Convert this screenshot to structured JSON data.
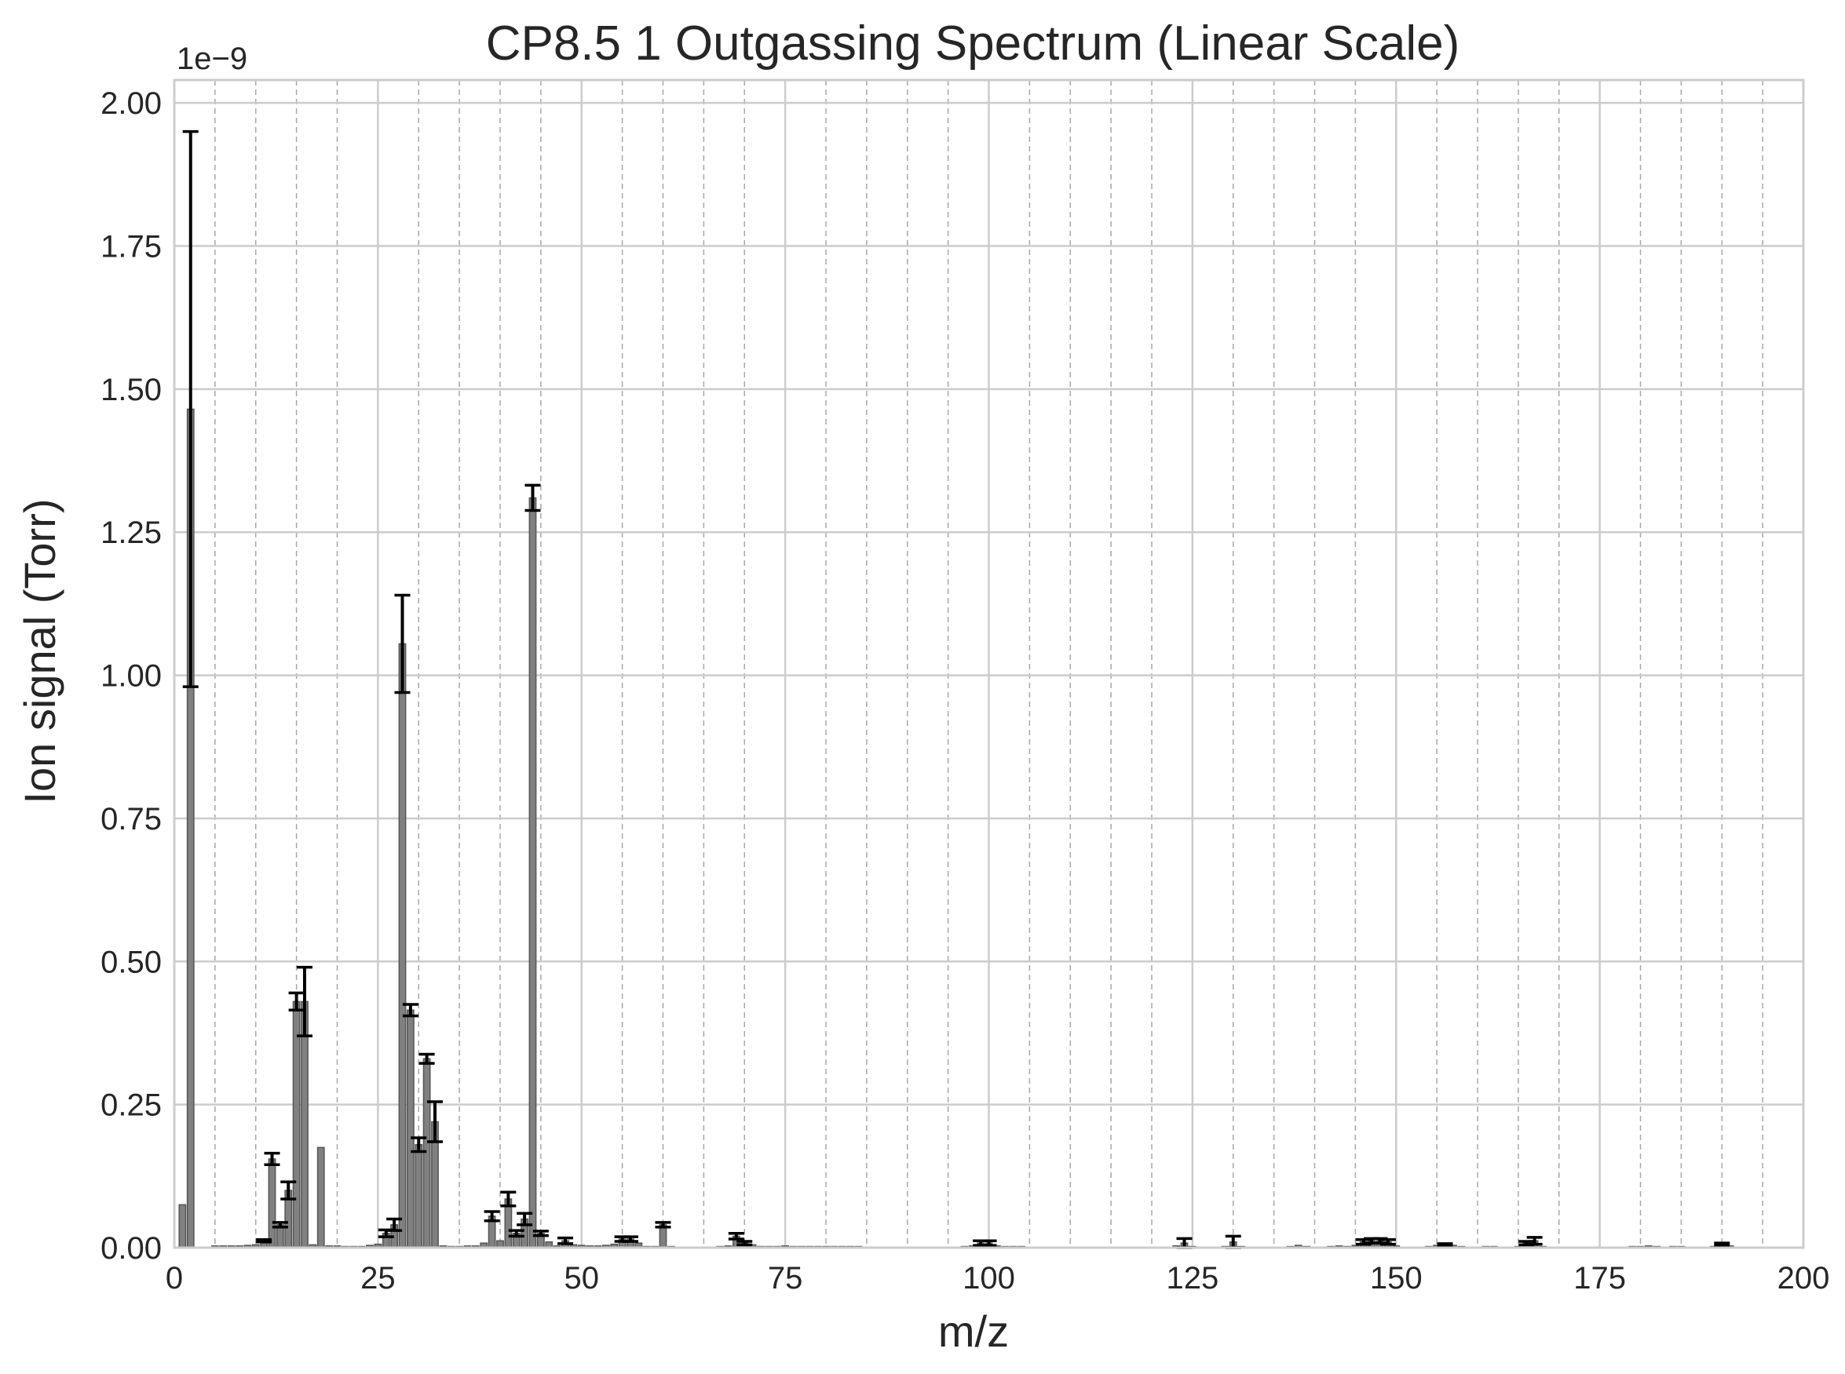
{
  "chart_data": {
    "type": "bar",
    "title": "CP8.5 1 Outgassing Spectrum (Linear Scale)",
    "xlabel": "m/z",
    "ylabel": "Ion signal (Torr)",
    "y_offset_label": "1e−9",
    "y_scale_factor": 1e-09,
    "xlim": [
      0,
      200
    ],
    "ylim": [
      0,
      2.04
    ],
    "x_ticks": [
      0,
      25,
      50,
      75,
      100,
      125,
      150,
      175,
      200
    ],
    "x_tick_labels": [
      "0",
      "25",
      "50",
      "75",
      "100",
      "125",
      "150",
      "175",
      "200"
    ],
    "y_ticks": [
      0,
      0.25,
      0.5,
      0.75,
      1.0,
      1.25,
      1.5,
      1.75,
      2.0
    ],
    "y_tick_labels": [
      "0.00",
      "0.25",
      "0.50",
      "0.75",
      "1.00",
      "1.25",
      "1.50",
      "1.75",
      "2.00"
    ],
    "x_minor_step": 5,
    "grid": true,
    "bar_color": "#808080",
    "errorbar_color": "#000000",
    "series": [
      {
        "points": [
          {
            "x": 1,
            "y": 0.075
          },
          {
            "x": 2,
            "y": 1.465,
            "err": 0.485
          },
          {
            "x": 5,
            "y": 0.003
          },
          {
            "x": 6,
            "y": 0.003
          },
          {
            "x": 7,
            "y": 0.003
          },
          {
            "x": 8,
            "y": 0.003
          },
          {
            "x": 9,
            "y": 0.004
          },
          {
            "x": 10,
            "y": 0.005
          },
          {
            "x": 11,
            "y": 0.012,
            "err": 0.002
          },
          {
            "x": 12,
            "y": 0.155,
            "err": 0.01
          },
          {
            "x": 13,
            "y": 0.04,
            "err": 0.004
          },
          {
            "x": 14,
            "y": 0.1,
            "err": 0.015
          },
          {
            "x": 15,
            "y": 0.43,
            "err": 0.015
          },
          {
            "x": 16,
            "y": 0.43,
            "err": 0.06
          },
          {
            "x": 17,
            "y": 0.005
          },
          {
            "x": 18,
            "y": 0.175
          },
          {
            "x": 19,
            "y": 0.003
          },
          {
            "x": 20,
            "y": 0.003
          },
          {
            "x": 21,
            "y": 0.002
          },
          {
            "x": 22,
            "y": 0.002
          },
          {
            "x": 23,
            "y": 0.002
          },
          {
            "x": 24,
            "y": 0.004
          },
          {
            "x": 25,
            "y": 0.006
          },
          {
            "x": 26,
            "y": 0.025,
            "err": 0.006
          },
          {
            "x": 27,
            "y": 0.04,
            "err": 0.01
          },
          {
            "x": 28,
            "y": 1.055,
            "err": 0.085
          },
          {
            "x": 29,
            "y": 0.415,
            "err": 0.01
          },
          {
            "x": 30,
            "y": 0.18,
            "err": 0.012
          },
          {
            "x": 31,
            "y": 0.33,
            "err": 0.008
          },
          {
            "x": 32,
            "y": 0.22,
            "err": 0.035
          },
          {
            "x": 33,
            "y": 0.003
          },
          {
            "x": 34,
            "y": 0.002
          },
          {
            "x": 35,
            "y": 0.002
          },
          {
            "x": 36,
            "y": 0.003
          },
          {
            "x": 37,
            "y": 0.003
          },
          {
            "x": 38,
            "y": 0.008
          },
          {
            "x": 39,
            "y": 0.055,
            "err": 0.008
          },
          {
            "x": 40,
            "y": 0.012
          },
          {
            "x": 41,
            "y": 0.085,
            "err": 0.012
          },
          {
            "x": 42,
            "y": 0.025,
            "err": 0.005
          },
          {
            "x": 43,
            "y": 0.05,
            "err": 0.01
          },
          {
            "x": 44,
            "y": 1.31,
            "err": 0.022
          },
          {
            "x": 45,
            "y": 0.025,
            "err": 0.004
          },
          {
            "x": 46,
            "y": 0.01
          },
          {
            "x": 47,
            "y": 0.003
          },
          {
            "x": 48,
            "y": 0.012,
            "err": 0.005
          },
          {
            "x": 49,
            "y": 0.005
          },
          {
            "x": 50,
            "y": 0.004
          },
          {
            "x": 51,
            "y": 0.003
          },
          {
            "x": 52,
            "y": 0.003
          },
          {
            "x": 53,
            "y": 0.004
          },
          {
            "x": 54,
            "y": 0.006
          },
          {
            "x": 55,
            "y": 0.015,
            "err": 0.004
          },
          {
            "x": 56,
            "y": 0.015,
            "err": 0.004
          },
          {
            "x": 57,
            "y": 0.008
          },
          {
            "x": 58,
            "y": 0.002
          },
          {
            "x": 59,
            "y": 0.002
          },
          {
            "x": 60,
            "y": 0.04,
            "err": 0.004
          },
          {
            "x": 61,
            "y": 0.002
          },
          {
            "x": 62,
            "y": 0.001
          },
          {
            "x": 63,
            "y": 0.001
          },
          {
            "x": 64,
            "y": 0.001
          },
          {
            "x": 65,
            "y": 0.001
          },
          {
            "x": 66,
            "y": 0.001
          },
          {
            "x": 67,
            "y": 0.002
          },
          {
            "x": 68,
            "y": 0.003
          },
          {
            "x": 69,
            "y": 0.02,
            "err": 0.005
          },
          {
            "x": 70,
            "y": 0.008,
            "err": 0.003
          },
          {
            "x": 71,
            "y": 0.005
          },
          {
            "x": 72,
            "y": 0.002
          },
          {
            "x": 73,
            "y": 0.002
          },
          {
            "x": 74,
            "y": 0.002
          },
          {
            "x": 75,
            "y": 0.003
          },
          {
            "x": 76,
            "y": 0.002
          },
          {
            "x": 77,
            "y": 0.002
          },
          {
            "x": 78,
            "y": 0.002
          },
          {
            "x": 79,
            "y": 0.002
          },
          {
            "x": 80,
            "y": 0.002
          },
          {
            "x": 81,
            "y": 0.002
          },
          {
            "x": 82,
            "y": 0.002
          },
          {
            "x": 83,
            "y": 0.002
          },
          {
            "x": 84,
            "y": 0.002
          },
          {
            "x": 85,
            "y": 0.001
          },
          {
            "x": 86,
            "y": 0.001
          },
          {
            "x": 87,
            "y": 0.001
          },
          {
            "x": 88,
            "y": 0.001
          },
          {
            "x": 89,
            "y": 0.001
          },
          {
            "x": 90,
            "y": 0.001
          },
          {
            "x": 91,
            "y": 0.001
          },
          {
            "x": 92,
            "y": 0.001
          },
          {
            "x": 93,
            "y": 0.001
          },
          {
            "x": 94,
            "y": 0.001
          },
          {
            "x": 95,
            "y": 0.001
          },
          {
            "x": 96,
            "y": 0.001
          },
          {
            "x": 97,
            "y": 0.002
          },
          {
            "x": 98,
            "y": 0.003
          },
          {
            "x": 99,
            "y": 0.008,
            "err": 0.004
          },
          {
            "x": 100,
            "y": 0.008,
            "err": 0.004
          },
          {
            "x": 101,
            "y": 0.003
          },
          {
            "x": 102,
            "y": 0.002
          },
          {
            "x": 103,
            "y": 0.002
          },
          {
            "x": 104,
            "y": 0.002
          },
          {
            "x": 105,
            "y": 0.001
          },
          {
            "x": 106,
            "y": 0.001
          },
          {
            "x": 107,
            "y": 0.001
          },
          {
            "x": 108,
            "y": 0.001
          },
          {
            "x": 109,
            "y": 0.001
          },
          {
            "x": 110,
            "y": 0.001
          },
          {
            "x": 111,
            "y": 0.001
          },
          {
            "x": 112,
            "y": 0.001
          },
          {
            "x": 113,
            "y": 0.001
          },
          {
            "x": 114,
            "y": 0.001
          },
          {
            "x": 115,
            "y": 0.001
          },
          {
            "x": 116,
            "y": 0.001
          },
          {
            "x": 117,
            "y": 0.001
          },
          {
            "x": 118,
            "y": 0.001
          },
          {
            "x": 119,
            "y": 0.001
          },
          {
            "x": 120,
            "y": 0.001
          },
          {
            "x": 121,
            "y": 0.001
          },
          {
            "x": 122,
            "y": 0.001
          },
          {
            "x": 123,
            "y": 0.003
          },
          {
            "x": 124,
            "y": 0.008,
            "err": 0.008
          },
          {
            "x": 125,
            "y": 0.002
          },
          {
            "x": 126,
            "y": 0.001
          },
          {
            "x": 127,
            "y": 0.001
          },
          {
            "x": 128,
            "y": 0.001
          },
          {
            "x": 129,
            "y": 0.002
          },
          {
            "x": 130,
            "y": 0.01,
            "err": 0.01
          },
          {
            "x": 131,
            "y": 0.002
          },
          {
            "x": 132,
            "y": 0.001
          },
          {
            "x": 133,
            "y": 0.001
          },
          {
            "x": 134,
            "y": 0.001
          },
          {
            "x": 135,
            "y": 0.001
          },
          {
            "x": 136,
            "y": 0.001
          },
          {
            "x": 137,
            "y": 0.002
          },
          {
            "x": 138,
            "y": 0.004
          },
          {
            "x": 139,
            "y": 0.002
          },
          {
            "x": 140,
            "y": 0.001
          },
          {
            "x": 141,
            "y": 0.001
          },
          {
            "x": 142,
            "y": 0.002
          },
          {
            "x": 143,
            "y": 0.003
          },
          {
            "x": 144,
            "y": 0.002
          },
          {
            "x": 145,
            "y": 0.004
          },
          {
            "x": 146,
            "y": 0.01,
            "err": 0.004
          },
          {
            "x": 147,
            "y": 0.012,
            "err": 0.004
          },
          {
            "x": 148,
            "y": 0.012,
            "err": 0.004
          },
          {
            "x": 149,
            "y": 0.01,
            "err": 0.004
          },
          {
            "x": 150,
            "y": 0.003
          },
          {
            "x": 151,
            "y": 0.001
          },
          {
            "x": 152,
            "y": 0.001
          },
          {
            "x": 153,
            "y": 0.001
          },
          {
            "x": 154,
            "y": 0.002
          },
          {
            "x": 155,
            "y": 0.004
          },
          {
            "x": 156,
            "y": 0.005,
            "err": 0.002
          },
          {
            "x": 157,
            "y": 0.004
          },
          {
            "x": 158,
            "y": 0.002
          },
          {
            "x": 159,
            "y": 0.001
          },
          {
            "x": 160,
            "y": 0.001
          },
          {
            "x": 161,
            "y": 0.002
          },
          {
            "x": 162,
            "y": 0.002
          },
          {
            "x": 163,
            "y": 0.001
          },
          {
            "x": 164,
            "y": 0.001
          },
          {
            "x": 165,
            "y": 0.002
          },
          {
            "x": 166,
            "y": 0.008,
            "err": 0.003
          },
          {
            "x": 167,
            "y": 0.012,
            "err": 0.006
          },
          {
            "x": 168,
            "y": 0.002
          },
          {
            "x": 169,
            "y": 0.001
          },
          {
            "x": 170,
            "y": 0.001
          },
          {
            "x": 171,
            "y": 0.001
          },
          {
            "x": 172,
            "y": 0.001
          },
          {
            "x": 173,
            "y": 0.001
          },
          {
            "x": 174,
            "y": 0.001
          },
          {
            "x": 175,
            "y": 0.001
          },
          {
            "x": 176,
            "y": 0.001
          },
          {
            "x": 177,
            "y": 0.001
          },
          {
            "x": 178,
            "y": 0.001
          },
          {
            "x": 179,
            "y": 0.002
          },
          {
            "x": 180,
            "y": 0.002
          },
          {
            "x": 181,
            "y": 0.003
          },
          {
            "x": 182,
            "y": 0.002
          },
          {
            "x": 183,
            "y": 0.001
          },
          {
            "x": 184,
            "y": 0.002
          },
          {
            "x": 185,
            "y": 0.002
          },
          {
            "x": 186,
            "y": 0.001
          },
          {
            "x": 187,
            "y": 0.001
          },
          {
            "x": 188,
            "y": 0.001
          },
          {
            "x": 189,
            "y": 0.002
          },
          {
            "x": 190,
            "y": 0.006,
            "err": 0.002
          },
          {
            "x": 191,
            "y": 0.003
          },
          {
            "x": 192,
            "y": 0.001
          },
          {
            "x": 193,
            "y": 0.001
          },
          {
            "x": 194,
            "y": 0.001
          },
          {
            "x": 195,
            "y": 0.001
          },
          {
            "x": 196,
            "y": 0.001
          },
          {
            "x": 197,
            "y": 0.001
          },
          {
            "x": 198,
            "y": 0.001
          },
          {
            "x": 199,
            "y": 0.001
          }
        ]
      }
    ]
  }
}
